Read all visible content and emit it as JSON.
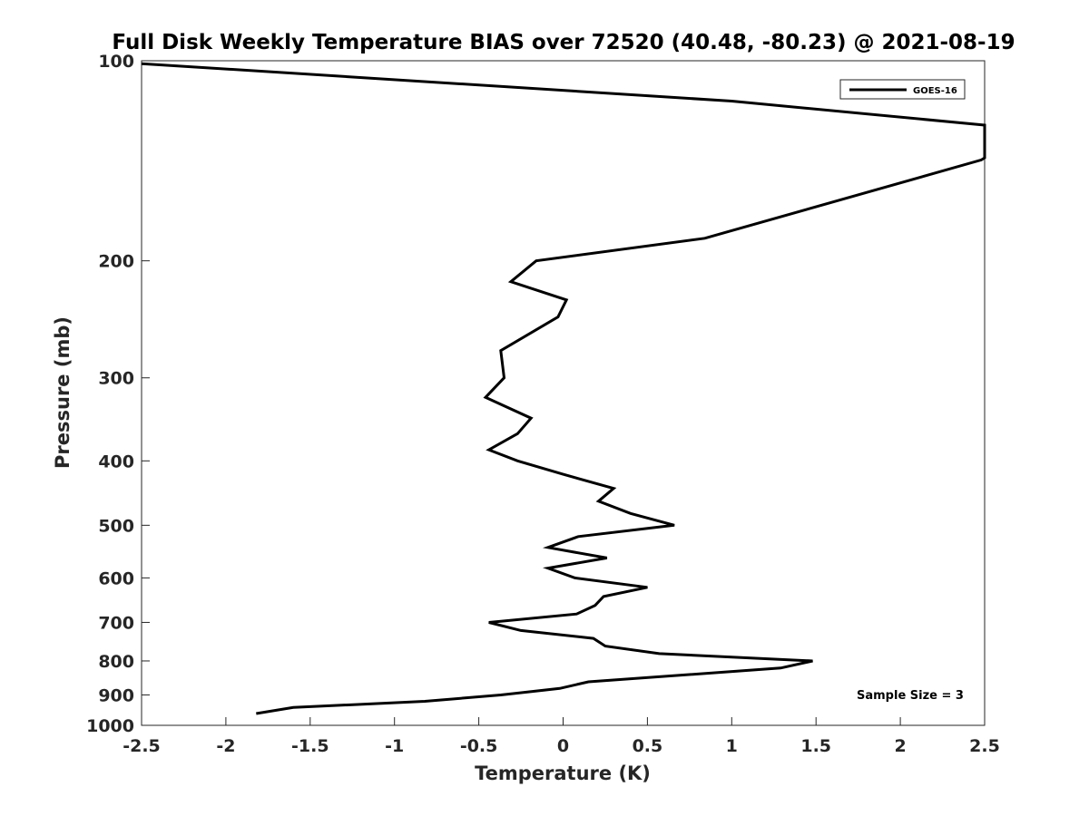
{
  "chart_data": {
    "type": "line",
    "title": "Full Disk Weekly Temperature BIAS over 72520 (40.48, -80.23) @ 2021-08-19",
    "xlabel": "Temperature (K)",
    "ylabel": "Pressure (mb)",
    "xlim": [
      -2.5,
      2.5
    ],
    "ylim": [
      1000,
      100
    ],
    "yscale": "log",
    "xticks": [
      -2.5,
      -2,
      -1.5,
      -1,
      -0.5,
      0,
      0.5,
      1,
      1.5,
      2,
      2.5
    ],
    "xtick_labels": [
      "-2.5",
      "-2",
      "-1.5",
      "-1",
      "-0.5",
      "0",
      "0.5",
      "1",
      "1.5",
      "2",
      "2.5"
    ],
    "yticks": [
      100,
      200,
      300,
      400,
      500,
      600,
      700,
      800,
      900,
      1000
    ],
    "ytick_labels": [
      "100",
      "200",
      "300",
      "400",
      "500",
      "600",
      "700",
      "800",
      "900",
      "1000"
    ],
    "grid": false,
    "legend_position": "top-right",
    "series": [
      {
        "name": "GOES-16",
        "color": "#000000",
        "points": [
          [
            -2.5,
            101
          ],
          [
            1.0,
            115
          ],
          [
            2.5,
            125
          ],
          [
            2.5,
            140
          ],
          [
            2.48,
            141
          ],
          [
            0.84,
            185
          ],
          [
            -0.16,
            200
          ],
          [
            -0.31,
            215
          ],
          [
            0.02,
            229
          ],
          [
            -0.03,
            243
          ],
          [
            -0.37,
            273
          ],
          [
            -0.35,
            300
          ],
          [
            -0.46,
            321
          ],
          [
            -0.19,
            345
          ],
          [
            -0.27,
            364
          ],
          [
            -0.44,
            385
          ],
          [
            -0.27,
            400
          ],
          [
            0.0,
            419
          ],
          [
            0.3,
            440
          ],
          [
            0.21,
            460
          ],
          [
            0.4,
            480
          ],
          [
            0.66,
            500
          ],
          [
            0.09,
            520
          ],
          [
            -0.09,
            540
          ],
          [
            0.26,
            560
          ],
          [
            -0.09,
            580
          ],
          [
            0.07,
            600
          ],
          [
            0.5,
            620
          ],
          [
            0.24,
            640
          ],
          [
            0.19,
            660
          ],
          [
            0.08,
            680
          ],
          [
            -0.44,
            700
          ],
          [
            -0.25,
            720
          ],
          [
            0.18,
            740
          ],
          [
            0.25,
            760
          ],
          [
            0.57,
            780
          ],
          [
            1.48,
            800
          ],
          [
            1.29,
            820
          ],
          [
            0.15,
            860
          ],
          [
            -0.02,
            880
          ],
          [
            -0.37,
            900
          ],
          [
            -0.82,
            920
          ],
          [
            -1.6,
            940
          ],
          [
            -1.82,
            960
          ]
        ]
      }
    ],
    "annotations": [
      "Sample Size = 3"
    ]
  }
}
